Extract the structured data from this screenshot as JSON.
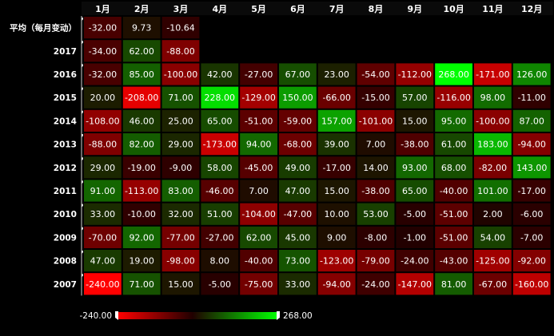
{
  "chart_data": {
    "type": "heatmap",
    "months": [
      "1月",
      "2月",
      "3月",
      "4月",
      "5月",
      "6月",
      "7月",
      "8月",
      "9月",
      "10月",
      "11月",
      "12月"
    ],
    "rows": [
      {
        "label": "平均（每月变动）",
        "values": [
          -32.0,
          9.73,
          -10.64,
          null,
          null,
          null,
          null,
          null,
          null,
          null,
          null,
          null
        ]
      },
      {
        "label": "2017",
        "values": [
          -34.0,
          62.0,
          -88.0,
          null,
          null,
          null,
          null,
          null,
          null,
          null,
          null,
          null
        ]
      },
      {
        "label": "2016",
        "values": [
          -32.0,
          85.0,
          -100.0,
          42.0,
          -27.0,
          67.0,
          23.0,
          -54.0,
          -112.0,
          268.0,
          -171.0,
          126.0
        ]
      },
      {
        "label": "2015",
        "values": [
          20.0,
          -208.0,
          71.0,
          228.0,
          -129.0,
          150.0,
          -66.0,
          -15.0,
          57.0,
          -116.0,
          98.0,
          -11.0
        ]
      },
      {
        "label": "2014",
        "values": [
          -108.0,
          46.0,
          25.0,
          65.0,
          -51.0,
          -59.0,
          157.0,
          -101.0,
          15.0,
          95.0,
          -100.0,
          87.0
        ]
      },
      {
        "label": "2013",
        "values": [
          -88.0,
          82.0,
          29.0,
          -173.0,
          94.0,
          -68.0,
          39.0,
          7.0,
          -38.0,
          61.0,
          183.0,
          -94.0
        ]
      },
      {
        "label": "2012",
        "values": [
          29.0,
          -19.0,
          -9.0,
          58.0,
          -45.0,
          49.0,
          -17.0,
          14.0,
          93.0,
          68.0,
          -82.0,
          143.0
        ]
      },
      {
        "label": "2011",
        "values": [
          91.0,
          -113.0,
          83.0,
          -46.0,
          7.0,
          47.0,
          15.0,
          -38.0,
          65.0,
          -40.0,
          101.0,
          -17.0
        ]
      },
      {
        "label": "2010",
        "values": [
          33.0,
          -10.0,
          32.0,
          51.0,
          -104.0,
          -47.0,
          10.0,
          53.0,
          -5.0,
          -51.0,
          2.0,
          -6.0
        ]
      },
      {
        "label": "2009",
        "values": [
          -70.0,
          92.0,
          -77.0,
          -27.0,
          62.0,
          45.0,
          9.0,
          -8.0,
          -1.0,
          -51.0,
          54.0,
          -7.0
        ]
      },
      {
        "label": "2008",
        "values": [
          47.0,
          19.0,
          -98.0,
          8.0,
          -40.0,
          73.0,
          -123.0,
          -79.0,
          -24.0,
          -43.0,
          -125.0,
          -92.0
        ]
      },
      {
        "label": "2007",
        "values": [
          -240.0,
          71.0,
          15.0,
          -5.0,
          -75.0,
          33.0,
          -94.0,
          -24.0,
          -147.0,
          81.0,
          -67.0,
          -160.0
        ]
      }
    ],
    "color_scale": {
      "min": -240.0,
      "max": 268.0,
      "min_label": "-240.00",
      "max_label": "268.00",
      "neg_color": "#ff0000",
      "neutral_color": "#200000",
      "pos_color": "#00ff00",
      "text_color": "#ffffff"
    },
    "background": "#000000",
    "legend_placement": "bottom-left"
  }
}
